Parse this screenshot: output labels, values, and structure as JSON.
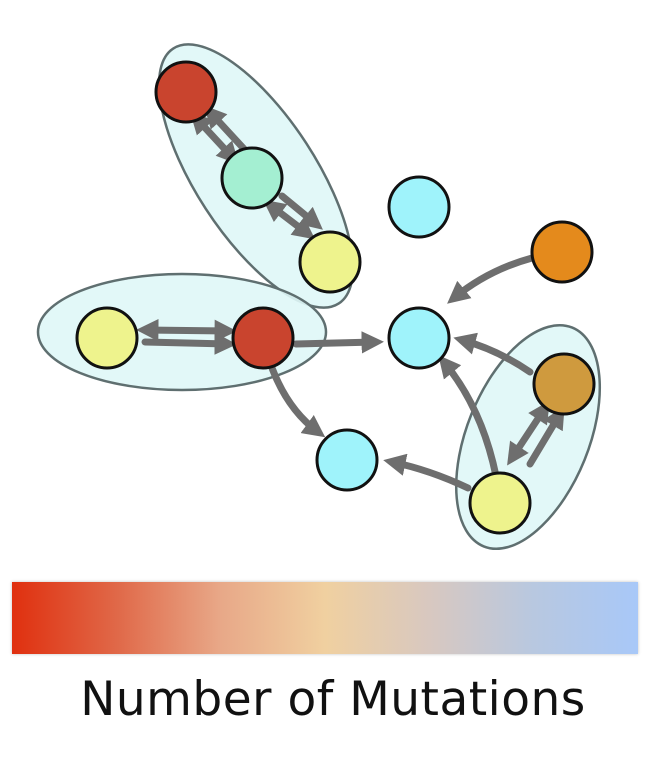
{
  "colorbar": {
    "label": "Number of Mutations",
    "stops": [
      "#e0300f",
      "#e06848",
      "#e8a888",
      "#f0d0a0",
      "#d8c8c0",
      "#b8c8e0",
      "#a8c8f8"
    ]
  },
  "colors": {
    "cluster_fill": "#dff7f7",
    "cluster_stroke": "#5f6f70",
    "edge": "#6e6e6e",
    "node_stroke": "#111111"
  },
  "nodes": [
    {
      "id": "red-top",
      "color": "#c9442e"
    },
    {
      "id": "mint-upper",
      "color": "#a4efd2"
    },
    {
      "id": "yellow-upper",
      "color": "#eef38d"
    },
    {
      "id": "yellow-left",
      "color": "#eef38d"
    },
    {
      "id": "red-mid",
      "color": "#c9442e"
    },
    {
      "id": "cyan-top",
      "color": "#9ff3fb"
    },
    {
      "id": "cyan-center",
      "color": "#9ff3fb"
    },
    {
      "id": "orange-top-right",
      "color": "#e48a1c"
    },
    {
      "id": "ochre-right",
      "color": "#cf9a3e"
    },
    {
      "id": "cyan-bottom",
      "color": "#9ff3fb"
    },
    {
      "id": "yellow-bottom-right",
      "color": "#eef38d"
    }
  ],
  "edges": [
    {
      "from": "red-top",
      "to": "mint-upper",
      "direction": "both"
    },
    {
      "from": "mint-upper",
      "to": "yellow-upper",
      "direction": "both"
    },
    {
      "from": "yellow-left",
      "to": "red-mid",
      "direction": "both"
    },
    {
      "from": "red-mid",
      "to": "cyan-center",
      "direction": "forward"
    },
    {
      "from": "red-mid",
      "to": "cyan-bottom",
      "direction": "forward"
    },
    {
      "from": "orange-top-right",
      "to": "cyan-center",
      "direction": "forward"
    },
    {
      "from": "ochre-right",
      "to": "cyan-center",
      "direction": "forward"
    },
    {
      "from": "yellow-bottom-right",
      "to": "cyan-center",
      "direction": "forward"
    },
    {
      "from": "ochre-right",
      "to": "yellow-bottom-right",
      "direction": "both"
    },
    {
      "from": "yellow-bottom-right",
      "to": "cyan-bottom",
      "direction": "forward"
    }
  ],
  "clusters": [
    {
      "id": "cluster-upper",
      "members": [
        "red-top",
        "mint-upper",
        "yellow-upper"
      ]
    },
    {
      "id": "cluster-left",
      "members": [
        "yellow-left",
        "red-mid"
      ]
    },
    {
      "id": "cluster-right",
      "members": [
        "ochre-right",
        "yellow-bottom-right"
      ]
    }
  ]
}
